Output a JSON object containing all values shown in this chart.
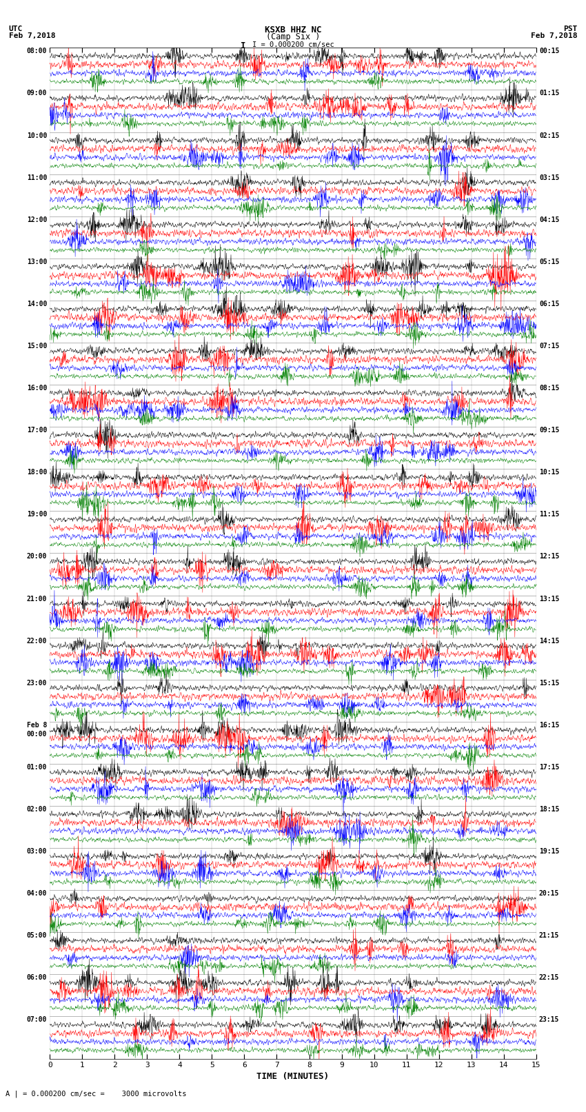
{
  "title": "KSXB HHZ NC",
  "subtitle": "(Camp Six )",
  "scale_text": "I = 0.000200 cm/sec",
  "utc_label": "UTC\nFeb 7,2018",
  "pst_label": "PST\nFeb 7,2018",
  "xlabel": "TIME (MINUTES)",
  "footnote": "A | = 0.000200 cm/sec =    3000 microvolts",
  "left_times": [
    "08:00",
    "09:00",
    "10:00",
    "11:00",
    "12:00",
    "13:00",
    "14:00",
    "15:00",
    "16:00",
    "17:00",
    "18:00",
    "19:00",
    "20:00",
    "21:00",
    "22:00",
    "23:00",
    "Feb 8\n00:00",
    "01:00",
    "02:00",
    "03:00",
    "04:00",
    "05:00",
    "06:00",
    "07:00"
  ],
  "right_times": [
    "00:15",
    "01:15",
    "02:15",
    "03:15",
    "04:15",
    "05:15",
    "06:15",
    "07:15",
    "08:15",
    "09:15",
    "10:15",
    "11:15",
    "12:15",
    "13:15",
    "14:15",
    "15:15",
    "16:15",
    "17:15",
    "18:15",
    "19:15",
    "20:15",
    "21:15",
    "22:15",
    "23:15"
  ],
  "num_rows": 24,
  "traces_per_row": 4,
  "trace_colors": [
    "#000000",
    "#ff0000",
    "#0000ff",
    "#008000"
  ],
  "bg_color": "#ffffff",
  "x_ticks": [
    0,
    1,
    2,
    3,
    4,
    5,
    6,
    7,
    8,
    9,
    10,
    11,
    12,
    13,
    14,
    15
  ],
  "x_lim": [
    0,
    15
  ],
  "seed": 42
}
